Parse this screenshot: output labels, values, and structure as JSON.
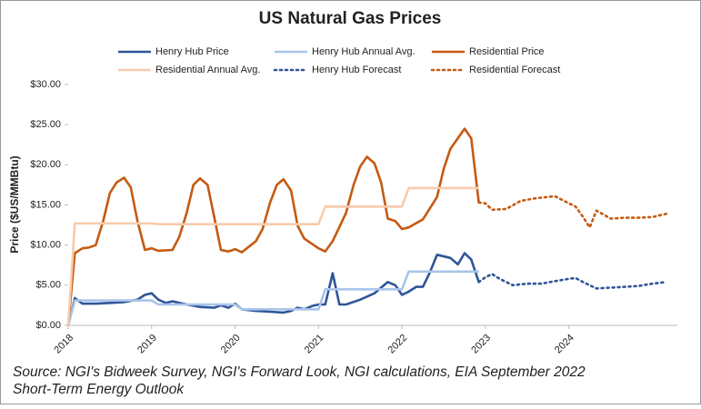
{
  "chart_data": {
    "type": "line",
    "title": "US Natural Gas Prices",
    "y_label": "Price ($US/MMBtu)",
    "notes": [
      "Source: NGI's Bidweek Survey, NGI's Forward Look, NGI calculations, EIA September 2022",
      "Short-Term Energy Outlook"
    ],
    "xlim": [
      2018,
      2025.3
    ],
    "xticks": [
      2018,
      2019,
      2020,
      2021,
      2022,
      2023,
      2024
    ],
    "ylim": [
      0,
      30
    ],
    "yticks": [
      {
        "value": 0,
        "label": "$0.00"
      },
      {
        "value": 5,
        "label": "$5.00"
      },
      {
        "value": 10,
        "label": "$10.00"
      },
      {
        "value": 15,
        "label": "$15.00"
      },
      {
        "value": 20,
        "label": "$20.00"
      },
      {
        "value": 25,
        "label": "$25.00"
      },
      {
        "value": 30,
        "label": "$30.00"
      }
    ],
    "series": [
      {
        "name": "Henry Hub Price",
        "color": "#2f5597",
        "dash": "solid",
        "x": [
          2018.0,
          2018.08,
          2018.17,
          2018.33,
          2018.5,
          2018.67,
          2018.83,
          2018.92,
          2019.0,
          2019.08,
          2019.17,
          2019.25,
          2019.42,
          2019.58,
          2019.75,
          2019.83,
          2019.92,
          2020.0,
          2020.08,
          2020.25,
          2020.42,
          2020.58,
          2020.67,
          2020.75,
          2020.83,
          2020.92,
          2021.0,
          2021.08,
          2021.17,
          2021.25,
          2021.33,
          2021.5,
          2021.67,
          2021.83,
          2021.92,
          2022.0,
          2022.08,
          2022.17,
          2022.25,
          2022.33,
          2022.42,
          2022.58,
          2022.67,
          2022.75,
          2022.83,
          2022.92
        ],
        "values": [
          0,
          3.4,
          2.7,
          2.7,
          2.8,
          2.9,
          3.2,
          3.8,
          4.0,
          3.2,
          2.8,
          3.0,
          2.6,
          2.3,
          2.2,
          2.5,
          2.2,
          2.7,
          2.0,
          1.8,
          1.7,
          1.6,
          1.8,
          2.2,
          2.0,
          2.4,
          2.6,
          2.6,
          6.5,
          2.6,
          2.6,
          3.2,
          4.0,
          5.4,
          5.0,
          3.8,
          4.2,
          4.8,
          4.8,
          6.5,
          8.8,
          8.4,
          7.6,
          9.0,
          8.2,
          5.4
        ]
      },
      {
        "name": "Henry Hub Annual Avg.",
        "color": "#a9c4eb",
        "dash": "solid",
        "x": [
          2018.0,
          2018.08,
          2019.0,
          2019.08,
          2020.0,
          2020.08,
          2021.0,
          2021.08,
          2022.0,
          2022.08,
          2022.92
        ],
        "values": [
          0,
          3.1,
          3.1,
          2.6,
          2.6,
          2.0,
          2.0,
          4.5,
          4.5,
          6.7,
          6.7
        ]
      },
      {
        "name": "Residential Price",
        "color": "#c55a11",
        "dash": "solid",
        "x": [
          2018.0,
          2018.08,
          2018.17,
          2018.25,
          2018.33,
          2018.42,
          2018.5,
          2018.58,
          2018.67,
          2018.75,
          2018.83,
          2018.92,
          2019.0,
          2019.08,
          2019.25,
          2019.33,
          2019.42,
          2019.5,
          2019.58,
          2019.67,
          2019.75,
          2019.83,
          2019.92,
          2020.0,
          2020.08,
          2020.25,
          2020.33,
          2020.42,
          2020.5,
          2020.58,
          2020.67,
          2020.75,
          2020.83,
          2021.0,
          2021.08,
          2021.17,
          2021.33,
          2021.42,
          2021.5,
          2021.58,
          2021.67,
          2021.75,
          2021.83,
          2021.92,
          2022.0,
          2022.08,
          2022.25,
          2022.42,
          2022.5,
          2022.58,
          2022.75,
          2022.83,
          2022.92
        ],
        "values": [
          0,
          9.0,
          9.6,
          9.7,
          10.0,
          13.0,
          16.5,
          17.8,
          18.4,
          17.2,
          13.0,
          9.4,
          9.6,
          9.3,
          9.4,
          11.0,
          14.0,
          17.5,
          18.3,
          17.5,
          13.5,
          9.4,
          9.2,
          9.5,
          9.1,
          10.5,
          12.0,
          15.3,
          17.5,
          18.2,
          16.8,
          12.4,
          10.8,
          9.6,
          9.2,
          10.5,
          14.0,
          17.5,
          19.8,
          21.0,
          20.2,
          17.8,
          13.3,
          13.0,
          12.0,
          12.2,
          13.2,
          16.0,
          19.5,
          22.0,
          24.5,
          23.3,
          15.3
        ]
      },
      {
        "name": "Residential Annual Avg.",
        "color": "#f8cbad",
        "dash": "solid",
        "x": [
          2018.0,
          2018.08,
          2019.0,
          2019.08,
          2021.0,
          2021.08,
          2022.0,
          2022.08,
          2022.92
        ],
        "values": [
          0,
          12.7,
          12.7,
          12.6,
          12.6,
          14.8,
          14.8,
          17.1,
          17.1
        ]
      },
      {
        "name": "Henry Hub Forecast",
        "color": "#2f5597",
        "dash": "dotted",
        "x": [
          2022.92,
          2023.0,
          2023.08,
          2023.17,
          2023.33,
          2023.5,
          2023.67,
          2023.83,
          2024.0,
          2024.08,
          2024.17,
          2024.33,
          2024.5,
          2024.67,
          2024.83,
          2025.0,
          2025.17
        ],
        "values": [
          5.4,
          6.0,
          6.4,
          5.8,
          5.0,
          5.2,
          5.2,
          5.5,
          5.8,
          5.9,
          5.4,
          4.6,
          4.7,
          4.8,
          4.9,
          5.2,
          5.4
        ]
      },
      {
        "name": "Residential Forecast",
        "color": "#c55a11",
        "dash": "dotted",
        "x": [
          2022.92,
          2023.0,
          2023.08,
          2023.25,
          2023.42,
          2023.58,
          2023.75,
          2023.83,
          2024.0,
          2024.08,
          2024.17,
          2024.25,
          2024.33,
          2024.5,
          2024.67,
          2024.83,
          2025.0,
          2025.17
        ],
        "values": [
          15.3,
          15.2,
          14.4,
          14.5,
          15.5,
          15.8,
          16.0,
          16.1,
          15.2,
          14.8,
          13.5,
          12.2,
          14.3,
          13.3,
          13.4,
          13.4,
          13.5,
          13.9
        ]
      }
    ]
  }
}
